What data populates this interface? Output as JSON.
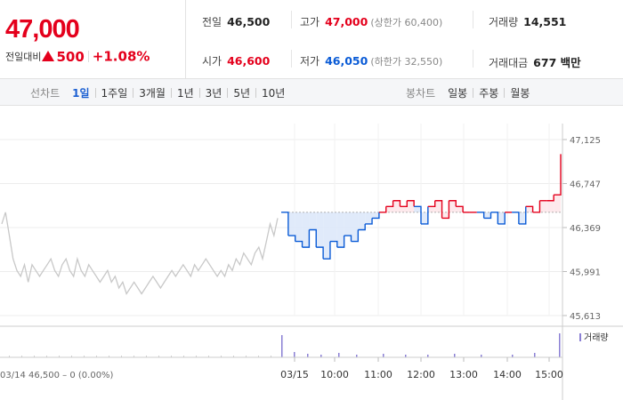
{
  "price": {
    "current": "47,000",
    "change_label": "전일대비",
    "change_amount": "500",
    "change_rate": "+1.08%"
  },
  "stats": {
    "prev_close": {
      "label": "전일",
      "value": "46,500"
    },
    "open": {
      "label": "시가",
      "value": "46,600"
    },
    "high": {
      "label": "고가",
      "value": "47,000",
      "sub": "(상한가 60,400)"
    },
    "low": {
      "label": "저가",
      "value": "46,050",
      "sub": "(하한가 32,550)"
    },
    "volume": {
      "label": "거래량",
      "value": "14,551"
    },
    "amount": {
      "label": "거래대금",
      "value": "677 백만"
    }
  },
  "period_tabs": {
    "title": "선차트",
    "items": [
      "1일",
      "1주일",
      "3개월",
      "1년",
      "3년",
      "5년",
      "10년"
    ],
    "active_index": 0
  },
  "candle_tabs": {
    "title": "봉차트",
    "items": [
      "일봉",
      "주봉",
      "월봉"
    ]
  },
  "chart": {
    "y_ticks": [
      "47,125",
      "46,747",
      "46,369",
      "45,991",
      "45,613"
    ],
    "x_labels": [
      "03/15",
      "10:00",
      "11:00",
      "12:00",
      "13:00",
      "14:00",
      "15:00"
    ],
    "prev_day_info": "03/14  46,500 – 0 (0.00%)",
    "volume_legend": "거래량",
    "colors": {
      "up": "#e4001c",
      "down": "#0a5bd6",
      "prev": "#c8c8c8",
      "up_fill": "#fde7ea",
      "down_fill": "#dde8f9"
    }
  },
  "chart_data": {
    "type": "line",
    "title": "",
    "ylim": [
      45613,
      47125
    ],
    "y_ticks": [
      47125,
      46747,
      46369,
      45991,
      45613
    ],
    "baseline": 46500,
    "x_labels": [
      "03/15",
      "10:00",
      "11:00",
      "12:00",
      "13:00",
      "14:00",
      "15:00"
    ],
    "series": [
      {
        "values": [
          46500,
          46300,
          46250,
          46200,
          46350,
          46200,
          46100,
          46250,
          46200,
          46300,
          46250,
          46350,
          46400,
          46450,
          46500,
          46550,
          46600,
          46550,
          46600,
          46550,
          46400,
          46550,
          46600,
          46450,
          46600,
          46550,
          46500,
          46500,
          46500,
          46450,
          46500,
          46400,
          46500,
          46500,
          46400,
          46550,
          46500,
          46600,
          46600,
          46650,
          47000
        ]
      }
    ]
  }
}
